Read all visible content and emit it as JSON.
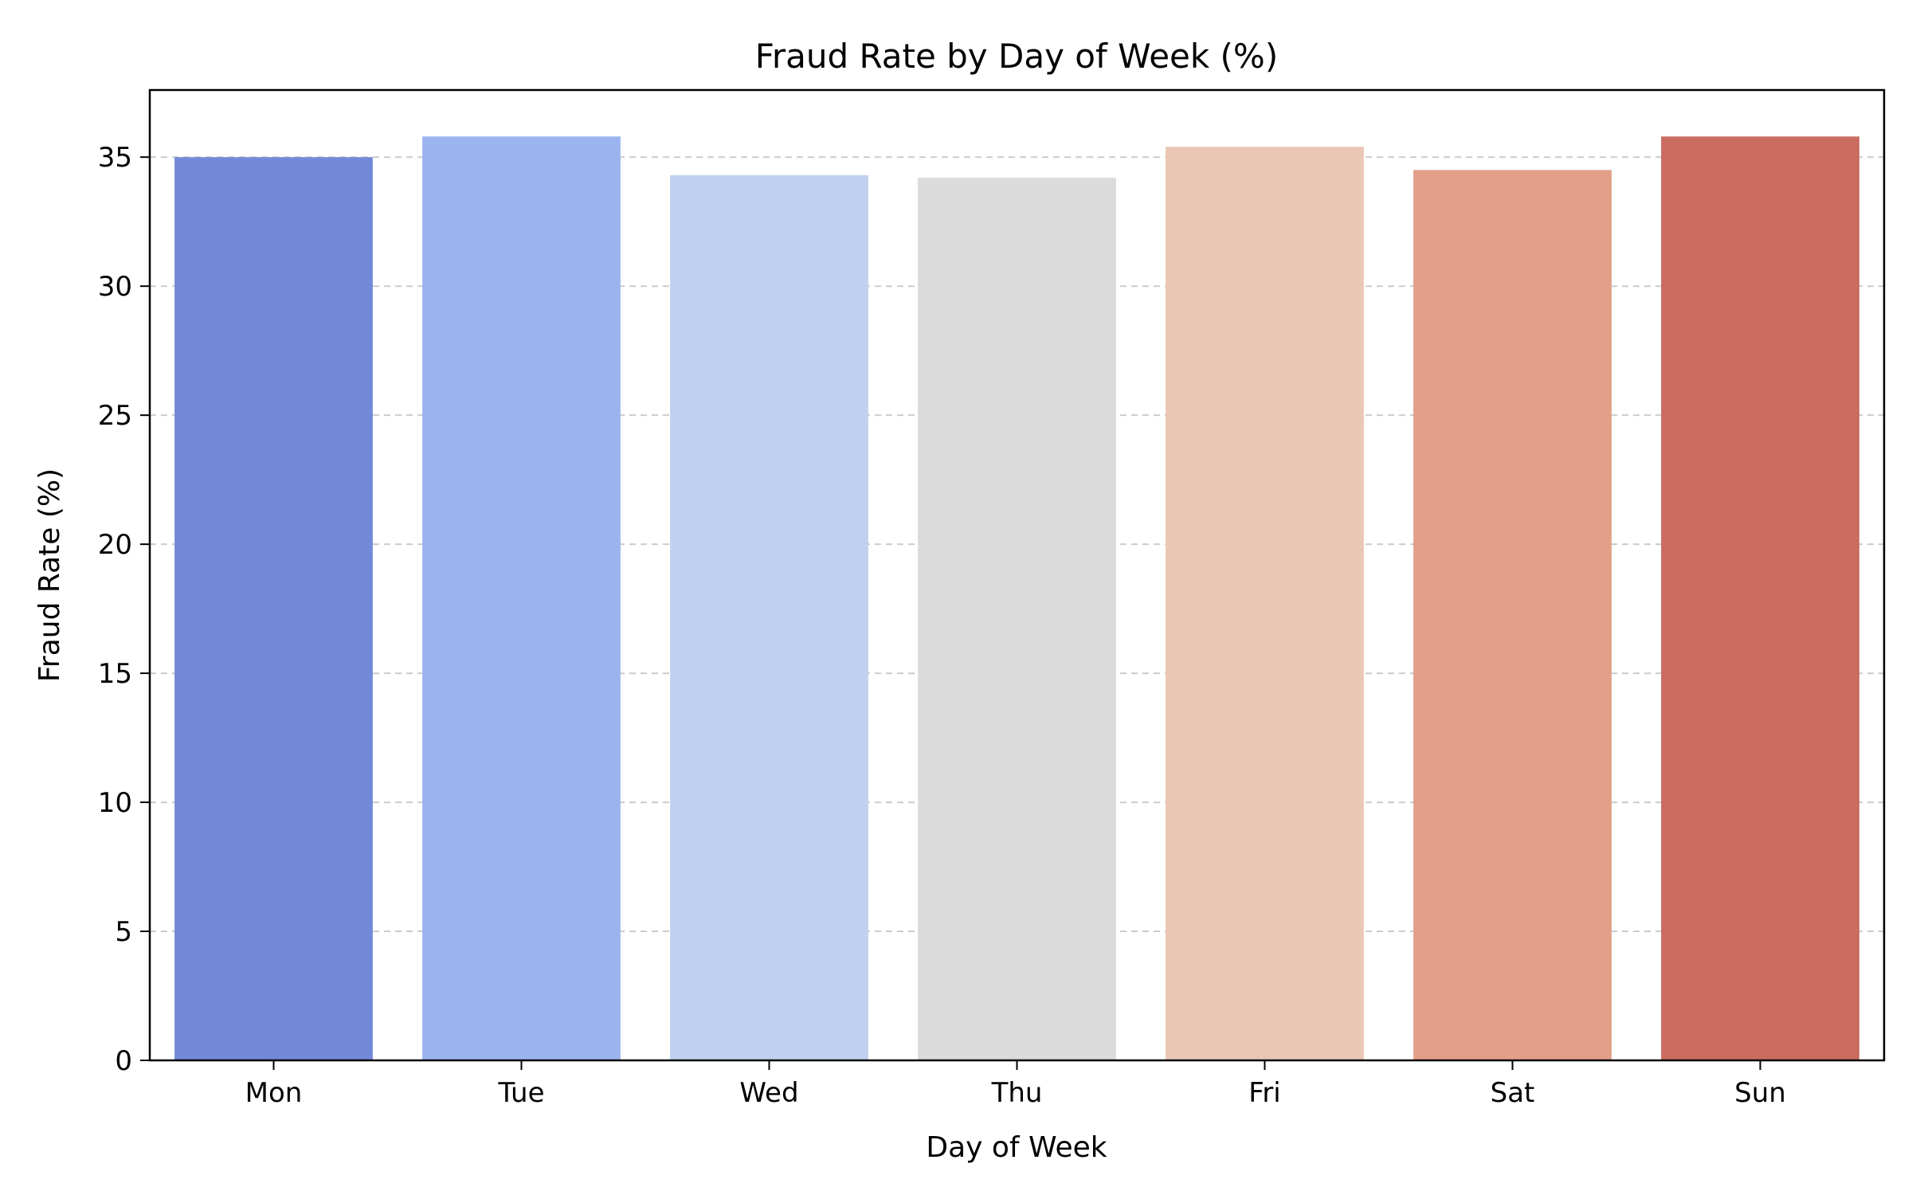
{
  "chart_data": {
    "type": "bar",
    "title": "Fraud Rate by Day of Week (%)",
    "xlabel": "Day of Week",
    "ylabel": "Fraud Rate (%)",
    "categories": [
      "Mon",
      "Tue",
      "Wed",
      "Thu",
      "Fri",
      "Sat",
      "Sun"
    ],
    "values": [
      35.0,
      35.8,
      34.3,
      34.2,
      35.4,
      34.5,
      35.8
    ],
    "colors": [
      "#7389d8",
      "#9bb4ef",
      "#c0d1ef",
      "#dbdbdb",
      "#eac6b4",
      "#e2a089",
      "#ca6c60"
    ],
    "ylim": [
      0,
      37.6
    ],
    "yticks": [
      0,
      5,
      10,
      15,
      20,
      25,
      30,
      35
    ],
    "grid": "y-dashed",
    "legend": "none"
  }
}
